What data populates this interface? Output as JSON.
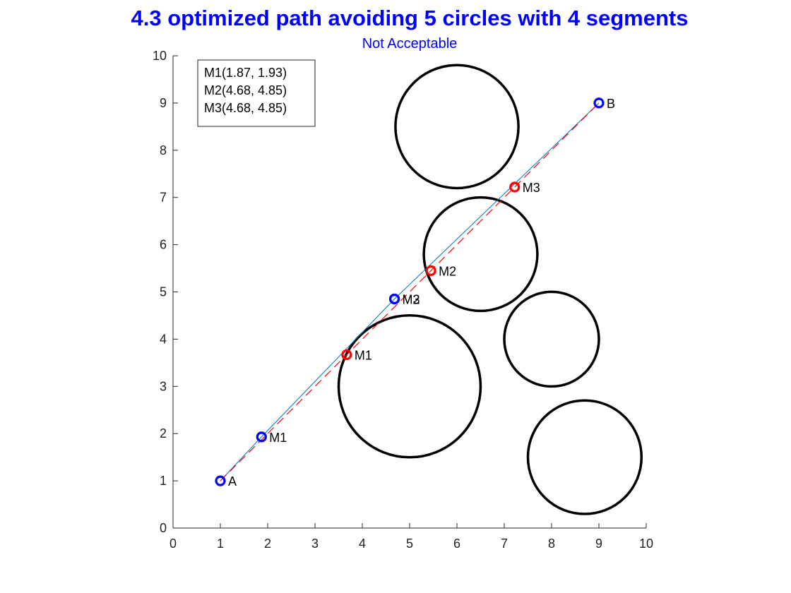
{
  "chart_data": {
    "type": "line",
    "title": "4.3 optimized path avoiding 5 circles with 4 segments",
    "subtitle": "Not Acceptable",
    "xlabel": "",
    "ylabel": "",
    "xlim": [
      0,
      10
    ],
    "ylim": [
      0,
      10
    ],
    "x_ticks": [
      0,
      1,
      2,
      3,
      4,
      5,
      6,
      7,
      8,
      9,
      10
    ],
    "y_ticks": [
      0,
      1,
      2,
      3,
      4,
      5,
      6,
      7,
      8,
      9,
      10
    ],
    "grid": false,
    "legend_position": "top-left",
    "circles": [
      {
        "cx": 6.0,
        "cy": 8.5,
        "r": 1.3
      },
      {
        "cx": 6.5,
        "cy": 5.8,
        "r": 1.2
      },
      {
        "cx": 8.0,
        "cy": 4.0,
        "r": 1.0
      },
      {
        "cx": 5.0,
        "cy": 3.0,
        "r": 1.5
      },
      {
        "cx": 8.7,
        "cy": 1.5,
        "r": 1.2
      }
    ],
    "series": [
      {
        "style": "solid",
        "color": "#0072bd",
        "points": [
          {
            "label": "A",
            "x": 1.0,
            "y": 1.0,
            "marker_color": "#0000ff"
          },
          {
            "label": "M1",
            "x": 1.87,
            "y": 1.93,
            "marker_color": "#0000ff"
          },
          {
            "label": "M2",
            "x": 4.68,
            "y": 4.85,
            "marker_color": "#0000ff"
          },
          {
            "label": "M3",
            "x": 4.68,
            "y": 4.85,
            "marker_color": "#0000ff"
          },
          {
            "label": "B",
            "x": 9.0,
            "y": 9.0,
            "marker_color": "#0000ff"
          }
        ]
      },
      {
        "style": "dashed",
        "color": "#ff0000",
        "points": [
          {
            "label": "",
            "x": 1.0,
            "y": 1.0,
            "marker_color": ""
          },
          {
            "label": "M1",
            "x": 3.67,
            "y": 3.67,
            "marker_color": "#ff0000"
          },
          {
            "label": "M2",
            "x": 5.45,
            "y": 5.45,
            "marker_color": "#ff0000"
          },
          {
            "label": "M3",
            "x": 7.22,
            "y": 7.22,
            "marker_color": "#ff0000"
          },
          {
            "label": "",
            "x": 9.0,
            "y": 9.0,
            "marker_color": ""
          }
        ]
      }
    ],
    "annotation_box": [
      "M1(1.87, 1.93)",
      "M2(4.68, 4.85)",
      "M3(4.68, 4.85)"
    ]
  }
}
